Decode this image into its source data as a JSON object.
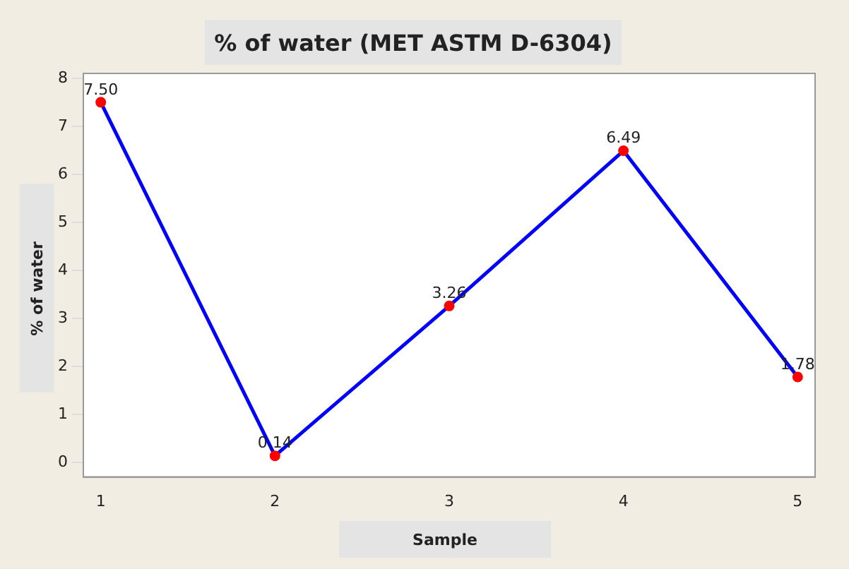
{
  "chart_data": {
    "type": "line",
    "title": "% of water (MET ASTM D-6304)",
    "xlabel": "Sample",
    "ylabel": "% of water",
    "x": [
      1,
      2,
      3,
      4,
      5
    ],
    "series": [
      {
        "color": "#0000ff",
        "colors": [
          "#ff0000",
          "#ff0000",
          "#ff0000",
          "#ff0000",
          "#ff0000"
        ],
        "values": [
          7.5,
          0.14,
          3.26,
          6.49,
          1.78
        ],
        "value_labels": [
          "7.50",
          "0.14",
          "3.26",
          "6.49",
          "1.78"
        ]
      }
    ],
    "xlim": [
      0.9,
      5.1
    ],
    "xticks": [
      1,
      2,
      3,
      4,
      5
    ],
    "ylim": [
      -0.3,
      8.1
    ],
    "yticks": [
      0,
      1,
      2,
      3,
      4,
      5,
      6,
      7,
      8
    ],
    "marker": "circle",
    "line_style": "solid",
    "grid": false,
    "legend": false
  }
}
